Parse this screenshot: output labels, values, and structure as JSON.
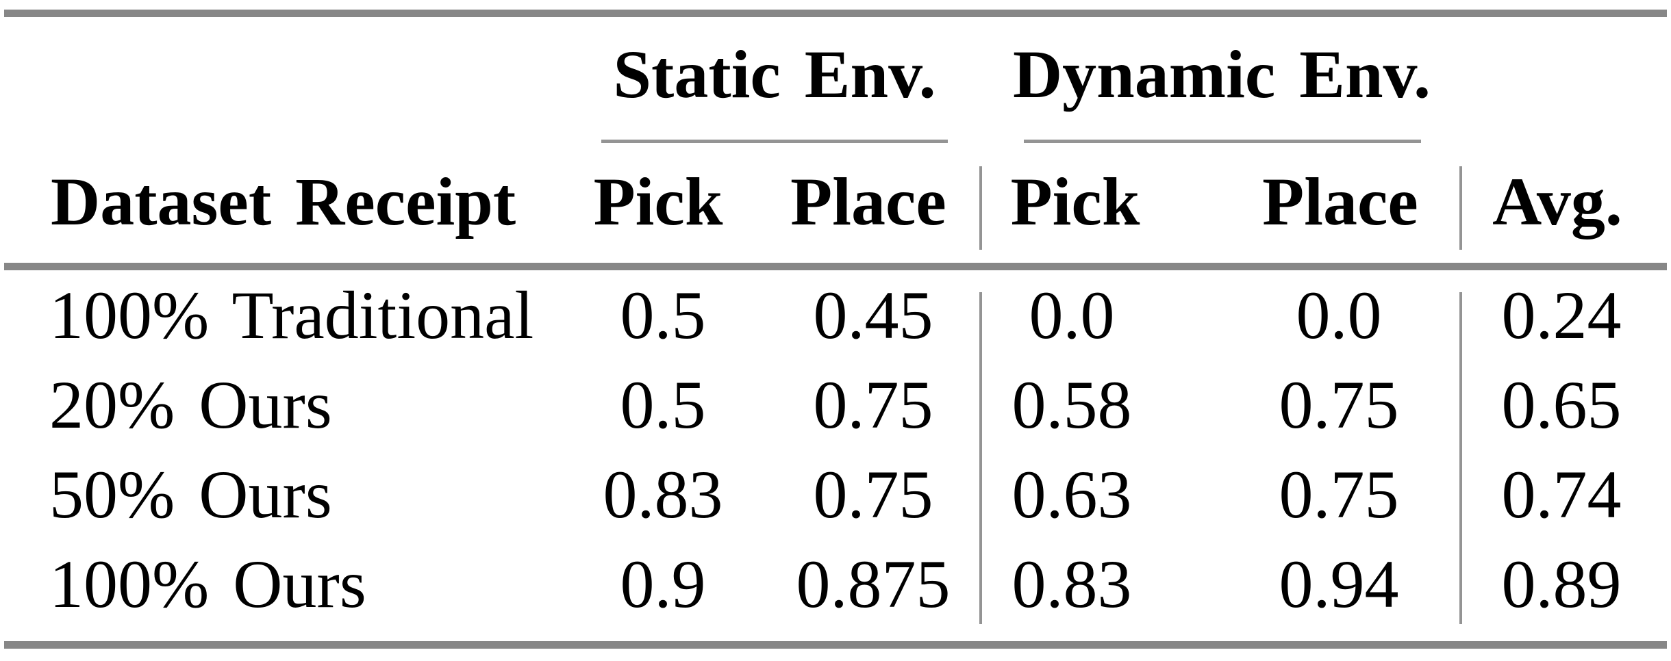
{
  "table": {
    "row_header_label": "Dataset Receipt",
    "groups": [
      {
        "label": "Static Env.",
        "columns": [
          "Pick",
          "Place"
        ]
      },
      {
        "label": "Dynamic Env.",
        "columns": [
          "Pick",
          "Place"
        ]
      }
    ],
    "avg_header": "Avg.",
    "rows": [
      {
        "label": "100% Traditional",
        "static_pick": "0.5",
        "static_place": "0.45",
        "dynamic_pick": "0.0",
        "dynamic_place": "0.0",
        "avg": "0.24"
      },
      {
        "label": "20% Ours",
        "static_pick": "0.5",
        "static_place": "0.75",
        "dynamic_pick": "0.58",
        "dynamic_place": "0.75",
        "avg": "0.65"
      },
      {
        "label": "50% Ours",
        "static_pick": "0.83",
        "static_place": "0.75",
        "dynamic_pick": "0.63",
        "dynamic_place": "0.75",
        "avg": "0.74"
      },
      {
        "label": "100% Ours",
        "static_pick": "0.9",
        "static_place": "0.875",
        "dynamic_pick": "0.83",
        "dynamic_place": "0.94",
        "avg": "0.89"
      }
    ],
    "colors": {
      "text": "#000000",
      "rule_heavy": "#878787",
      "rule_light": "#949494"
    }
  }
}
